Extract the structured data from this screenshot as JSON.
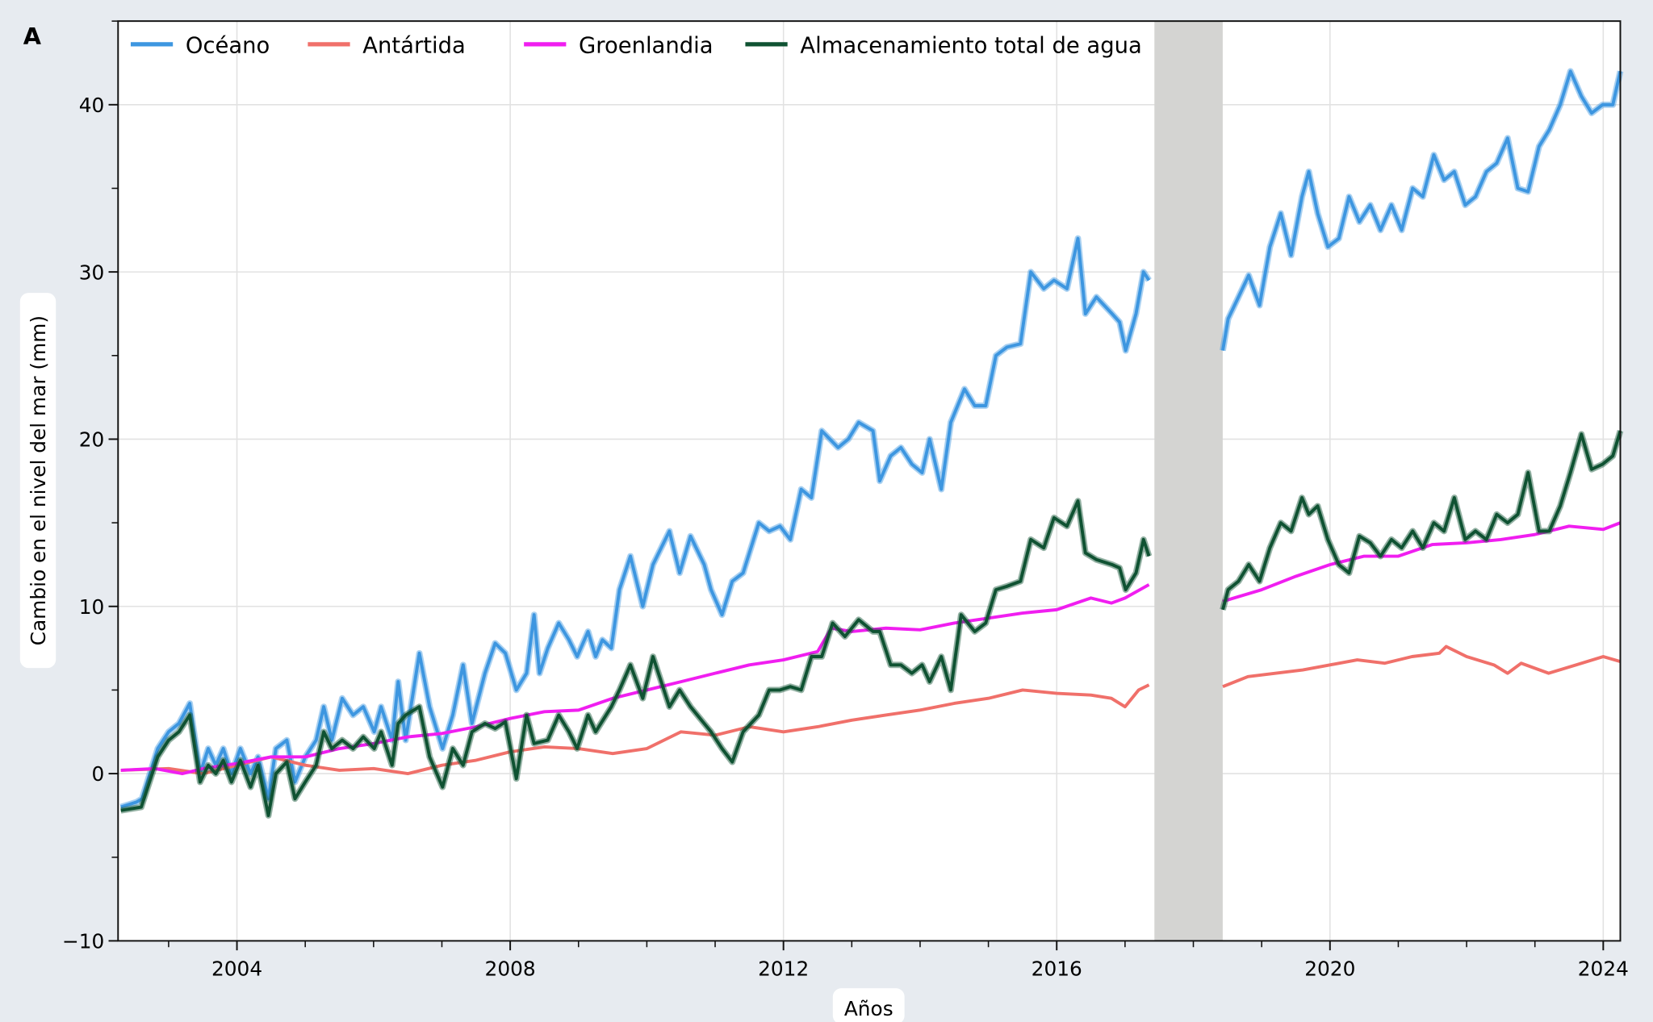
{
  "panel_label": "A",
  "chart_data": {
    "type": "line",
    "title": "",
    "xlabel": "Años",
    "ylabel": "Cambio en el nivel del mar (mm)",
    "xlim": [
      2002.26,
      2024.25
    ],
    "ylim": [
      -10,
      45
    ],
    "xticks": [
      2004,
      2008,
      2012,
      2016,
      2020,
      2024
    ],
    "xtick_labels": [
      "2004",
      "2008",
      "2012",
      "2016",
      "2020",
      "2024"
    ],
    "yticks": [
      -10,
      0,
      10,
      20,
      30,
      40
    ],
    "ytick_labels": [
      "−10",
      "0",
      "10",
      "20",
      "30",
      "40"
    ],
    "grid": true,
    "legend_position": "top-left",
    "data_gap": [
      2017.43,
      2018.43
    ],
    "series": [
      {
        "name": "Océano",
        "color": "#3d96e0",
        "segments": [
          {
            "x": [
              2002.3,
              2002.53,
              2002.61,
              2002.84,
              2003.0,
              2003.15,
              2003.31,
              2003.46,
              2003.58,
              2003.69,
              2003.8,
              2003.92,
              2004.05,
              2004.2,
              2004.31,
              2004.46,
              2004.57,
              2004.73,
              2004.85,
              2005.0,
              2005.16,
              2005.27,
              2005.39,
              2005.54,
              2005.7,
              2005.85,
              2006.01,
              2006.11,
              2006.27,
              2006.36,
              2006.47,
              2006.67,
              2006.82,
              2007.01,
              2007.16,
              2007.31,
              2007.44,
              2007.63,
              2007.78,
              2007.93,
              2008.09,
              2008.24,
              2008.35,
              2008.43,
              2008.55,
              2008.71,
              2008.86,
              2008.98,
              2009.14,
              2009.25,
              2009.35,
              2009.48,
              2009.6,
              2009.76,
              2009.94,
              2010.09,
              2010.33,
              2010.48,
              2010.64,
              2010.84,
              2010.94,
              2011.1,
              2011.25,
              2011.41,
              2011.64,
              2011.79,
              2011.95,
              2012.1,
              2012.26,
              2012.41,
              2012.56,
              2012.8,
              2012.95,
              2013.1,
              2013.31,
              2013.41,
              2013.57,
              2013.72,
              2013.88,
              2014.03,
              2014.14,
              2014.31,
              2014.45,
              2014.65,
              2014.8,
              2014.96,
              2015.11,
              2015.27,
              2015.47,
              2015.62,
              2015.81,
              2015.96,
              2016.15,
              2016.31,
              2016.42,
              2016.58,
              2016.81,
              2016.92,
              2017.01,
              2017.16,
              2017.27,
              2017.35
            ],
            "y": [
              -2,
              -1.7,
              -1.5,
              1.5,
              2.5,
              3,
              4.2,
              0,
              1.5,
              0.5,
              1.5,
              0,
              1.5,
              0,
              1,
              -1.5,
              1.5,
              2,
              -0.5,
              1,
              2,
              4,
              2,
              4.5,
              3.5,
              4,
              2.5,
              4,
              2,
              5.5,
              2,
              7.2,
              4,
              1.5,
              3.5,
              6.5,
              3,
              6,
              7.8,
              7.2,
              5,
              6,
              9.5,
              6,
              7.5,
              9,
              8,
              7,
              8.5,
              7,
              8,
              7.5,
              11,
              13,
              10,
              12.5,
              14.5,
              12,
              14.2,
              12.5,
              11,
              9.5,
              11.5,
              12,
              15,
              14.5,
              14.8,
              14,
              17,
              16.5,
              20.5,
              19.5,
              20,
              21,
              20.5,
              17.5,
              19,
              19.5,
              18.5,
              18,
              20,
              17,
              21,
              23,
              22,
              22,
              25,
              25.5,
              25.7,
              30,
              29,
              29.5,
              29,
              32,
              27.5,
              28.5,
              27.5,
              27,
              25.3,
              27.5,
              30,
              29.5
            ]
          },
          {
            "x": [
              2018.43,
              2018.51,
              2018.66,
              2018.81,
              2018.97,
              2019.12,
              2019.28,
              2019.43,
              2019.59,
              2019.69,
              2019.82,
              2019.97,
              2020.13,
              2020.28,
              2020.43,
              2020.59,
              2020.74,
              2020.9,
              2021.05,
              2021.21,
              2021.36,
              2021.52,
              2021.67,
              2021.82,
              2021.98,
              2022.13,
              2022.29,
              2022.44,
              2022.6,
              2022.75,
              2022.9,
              2023.06,
              2023.21,
              2023.37,
              2023.52,
              2023.68,
              2023.83,
              2023.99,
              2024.14,
              2024.25
            ],
            "y": [
              25.3,
              27.2,
              28.5,
              29.8,
              28,
              31.5,
              33.5,
              31,
              34.5,
              36,
              33.5,
              31.5,
              32,
              34.5,
              33,
              34,
              32.5,
              34,
              32.5,
              35,
              34.5,
              37,
              35.5,
              36,
              34,
              34.5,
              36,
              36.5,
              38,
              35,
              34.8,
              37.5,
              38.5,
              40,
              42,
              40.5,
              39.5,
              40,
              40,
              42
            ]
          }
        ]
      },
      {
        "name": "Antártida",
        "color": "#f0706a",
        "segments": [
          {
            "x": [
              2002.3,
              2003.0,
              2003.5,
              2004.0,
              2004.5,
              2005.0,
              2005.5,
              2006.0,
              2006.5,
              2007.0,
              2007.5,
              2008.0,
              2008.5,
              2009.0,
              2009.5,
              2010.0,
              2010.5,
              2011.0,
              2011.5,
              2012.0,
              2012.5,
              2013.0,
              2013.5,
              2014.0,
              2014.5,
              2015.0,
              2015.5,
              2016.0,
              2016.5,
              2016.8,
              2017.0,
              2017.2,
              2017.35
            ],
            "y": [
              0.2,
              0.3,
              0,
              0.5,
              1,
              0.5,
              0.2,
              0.3,
              0,
              0.5,
              0.8,
              1.3,
              1.6,
              1.5,
              1.2,
              1.5,
              2.5,
              2.3,
              2.8,
              2.5,
              2.8,
              3.2,
              3.5,
              3.8,
              4.2,
              4.5,
              5,
              4.8,
              4.7,
              4.5,
              4,
              5,
              5.3
            ]
          },
          {
            "x": [
              2018.43,
              2018.8,
              2019.2,
              2019.6,
              2020.0,
              2020.4,
              2020.8,
              2021.2,
              2021.6,
              2021.7,
              2022.0,
              2022.4,
              2022.6,
              2022.8,
              2023.2,
              2023.6,
              2024.0,
              2024.25
            ],
            "y": [
              5.2,
              5.8,
              6,
              6.2,
              6.5,
              6.8,
              6.6,
              7,
              7.2,
              7.6,
              7,
              6.5,
              6,
              6.6,
              6,
              6.5,
              7,
              6.7
            ]
          }
        ]
      },
      {
        "name": "Groenlandia",
        "color": "#f01ef0",
        "segments": [
          {
            "x": [
              2002.3,
              2002.8,
              2003.2,
              2003.5,
              2004.0,
              2004.5,
              2005.0,
              2005.5,
              2006.0,
              2006.5,
              2007.0,
              2007.5,
              2008.0,
              2008.5,
              2009.0,
              2009.5,
              2010.0,
              2010.5,
              2011.0,
              2011.5,
              2012.0,
              2012.5,
              2012.7,
              2013.0,
              2013.5,
              2014.0,
              2014.5,
              2015.0,
              2015.5,
              2016.0,
              2016.5,
              2016.8,
              2017.0,
              2017.35
            ],
            "y": [
              0.2,
              0.3,
              0,
              0.3,
              0.6,
              1,
              1,
              1.5,
              1.8,
              2.2,
              2.4,
              2.8,
              3.3,
              3.7,
              3.8,
              4.5,
              5,
              5.5,
              6,
              6.5,
              6.8,
              7.3,
              8.7,
              8.5,
              8.7,
              8.6,
              9,
              9.3,
              9.6,
              9.8,
              10.5,
              10.2,
              10.5,
              11.3
            ]
          },
          {
            "x": [
              2018.43,
              2019.0,
              2019.5,
              2020.0,
              2020.5,
              2021.0,
              2021.5,
              2022.0,
              2022.5,
              2023.0,
              2023.5,
              2024.0,
              2024.25
            ],
            "y": [
              10.3,
              11,
              11.8,
              12.5,
              13,
              13,
              13.7,
              13.8,
              14,
              14.3,
              14.8,
              14.6,
              15
            ]
          }
        ]
      },
      {
        "name": "Almacenamiento total de agua",
        "color": "#0f5232",
        "segments": [
          {
            "x": [
              2002.3,
              2002.6,
              2002.84,
              2003.0,
              2003.15,
              2003.31,
              2003.46,
              2003.58,
              2003.69,
              2003.8,
              2003.92,
              2004.05,
              2004.2,
              2004.31,
              2004.46,
              2004.57,
              2004.73,
              2004.85,
              2005.0,
              2005.16,
              2005.27,
              2005.39,
              2005.54,
              2005.7,
              2005.85,
              2006.01,
              2006.11,
              2006.27,
              2006.36,
              2006.47,
              2006.67,
              2006.82,
              2007.01,
              2007.16,
              2007.31,
              2007.44,
              2007.63,
              2007.78,
              2007.93,
              2008.09,
              2008.24,
              2008.35,
              2008.55,
              2008.71,
              2008.86,
              2008.98,
              2009.14,
              2009.25,
              2009.48,
              2009.6,
              2009.76,
              2009.94,
              2010.09,
              2010.33,
              2010.48,
              2010.64,
              2010.84,
              2010.94,
              2011.1,
              2011.25,
              2011.41,
              2011.64,
              2011.79,
              2011.95,
              2012.1,
              2012.26,
              2012.41,
              2012.56,
              2012.72,
              2012.9,
              2013.1,
              2013.31,
              2013.41,
              2013.57,
              2013.72,
              2013.88,
              2014.03,
              2014.14,
              2014.31,
              2014.45,
              2014.6,
              2014.8,
              2014.96,
              2015.11,
              2015.27,
              2015.47,
              2015.62,
              2015.81,
              2015.96,
              2016.15,
              2016.31,
              2016.42,
              2016.58,
              2016.81,
              2016.92,
              2017.01,
              2017.16,
              2017.27,
              2017.35
            ],
            "y": [
              -2.2,
              -2,
              1,
              2,
              2.5,
              3.5,
              -0.5,
              0.5,
              0,
              0.8,
              -0.5,
              0.8,
              -0.8,
              0.5,
              -2.5,
              0,
              0.7,
              -1.5,
              -0.5,
              0.5,
              2.5,
              1.5,
              2,
              1.5,
              2.2,
              1.5,
              2.5,
              0.5,
              3,
              3.5,
              4,
              1,
              -0.8,
              1.5,
              0.5,
              2.5,
              3,
              2.7,
              3.1,
              -0.3,
              3.5,
              1.8,
              2,
              3.5,
              2.5,
              1.5,
              3.5,
              2.5,
              4,
              5,
              6.5,
              4.5,
              7,
              4,
              5,
              4,
              3,
              2.5,
              1.5,
              0.7,
              2.5,
              3.5,
              5,
              5,
              5.2,
              5,
              7,
              7,
              9,
              8.2,
              9.2,
              8.5,
              8.5,
              6.5,
              6.5,
              6,
              6.5,
              5.5,
              7,
              5,
              9.5,
              8.5,
              9,
              11,
              11.2,
              11.5,
              14,
              13.5,
              15.3,
              14.8,
              16.3,
              13.2,
              12.8,
              12.5,
              12.3,
              11,
              12,
              14,
              13
            ]
          },
          {
            "x": [
              2018.43,
              2018.51,
              2018.66,
              2018.81,
              2018.97,
              2019.12,
              2019.28,
              2019.43,
              2019.59,
              2019.69,
              2019.82,
              2019.97,
              2020.13,
              2020.28,
              2020.43,
              2020.59,
              2020.74,
              2020.9,
              2021.05,
              2021.21,
              2021.36,
              2021.52,
              2021.67,
              2021.82,
              2021.98,
              2022.13,
              2022.29,
              2022.44,
              2022.6,
              2022.75,
              2022.9,
              2023.06,
              2023.21,
              2023.37,
              2023.52,
              2023.68,
              2023.83,
              2023.99,
              2024.14,
              2024.25
            ],
            "y": [
              9.8,
              11,
              11.5,
              12.5,
              11.5,
              13.5,
              15,
              14.5,
              16.5,
              15.5,
              16,
              14,
              12.5,
              12,
              14.2,
              13.8,
              13,
              14,
              13.5,
              14.5,
              13.5,
              15,
              14.5,
              16.5,
              14,
              14.5,
              14,
              15.5,
              15,
              15.5,
              18,
              14.5,
              14.5,
              16,
              18,
              20.3,
              18.2,
              18.5,
              19,
              20.5
            ]
          }
        ]
      }
    ]
  }
}
